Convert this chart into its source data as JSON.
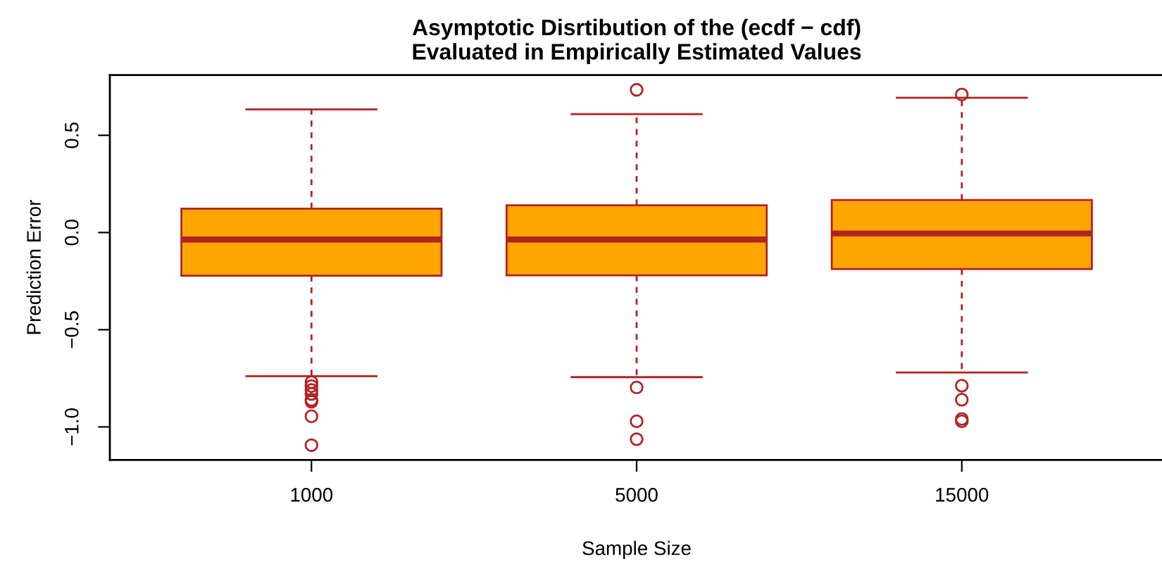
{
  "chart_data": {
    "type": "box",
    "title": "Asymptotic Disrtibution of the (ecdf − cdf)\nEvaluated in Empirically Estimated Values",
    "xlabel": "Sample Size",
    "ylabel": "Prediction Error",
    "categories": [
      "1000",
      "5000",
      "15000"
    ],
    "boxes": [
      {
        "low": -0.739,
        "q1": -0.222,
        "median": -0.036,
        "q3": 0.123,
        "high": 0.633,
        "outliers": [
          -0.77,
          -0.79,
          -0.81,
          -0.83,
          -0.86,
          -0.87,
          -0.945,
          -1.094
        ]
      },
      {
        "low": -0.744,
        "q1": -0.22,
        "median": -0.036,
        "q3": 0.14,
        "high": 0.609,
        "outliers": [
          0.734,
          -0.797,
          -0.971,
          -1.063
        ]
      },
      {
        "low": -0.72,
        "q1": -0.188,
        "median": -0.005,
        "q3": 0.167,
        "high": 0.693,
        "outliers": [
          0.71,
          -0.788,
          -0.86,
          -0.959,
          -0.971
        ]
      }
    ],
    "color": "#b22222",
    "colors": [
      "#ffa500",
      "#ffa500",
      "#ffa500"
    ],
    "ylim": [
      -1.17,
      0.81
    ],
    "yticks": [
      {
        "value": -1,
        "label": "−1.0"
      },
      {
        "value": -0.5,
        "label": "−0.5"
      },
      {
        "value": 0,
        "label": "0.0"
      },
      {
        "value": 0.5,
        "label": "0.5"
      }
    ],
    "grid": false,
    "legend": false
  }
}
